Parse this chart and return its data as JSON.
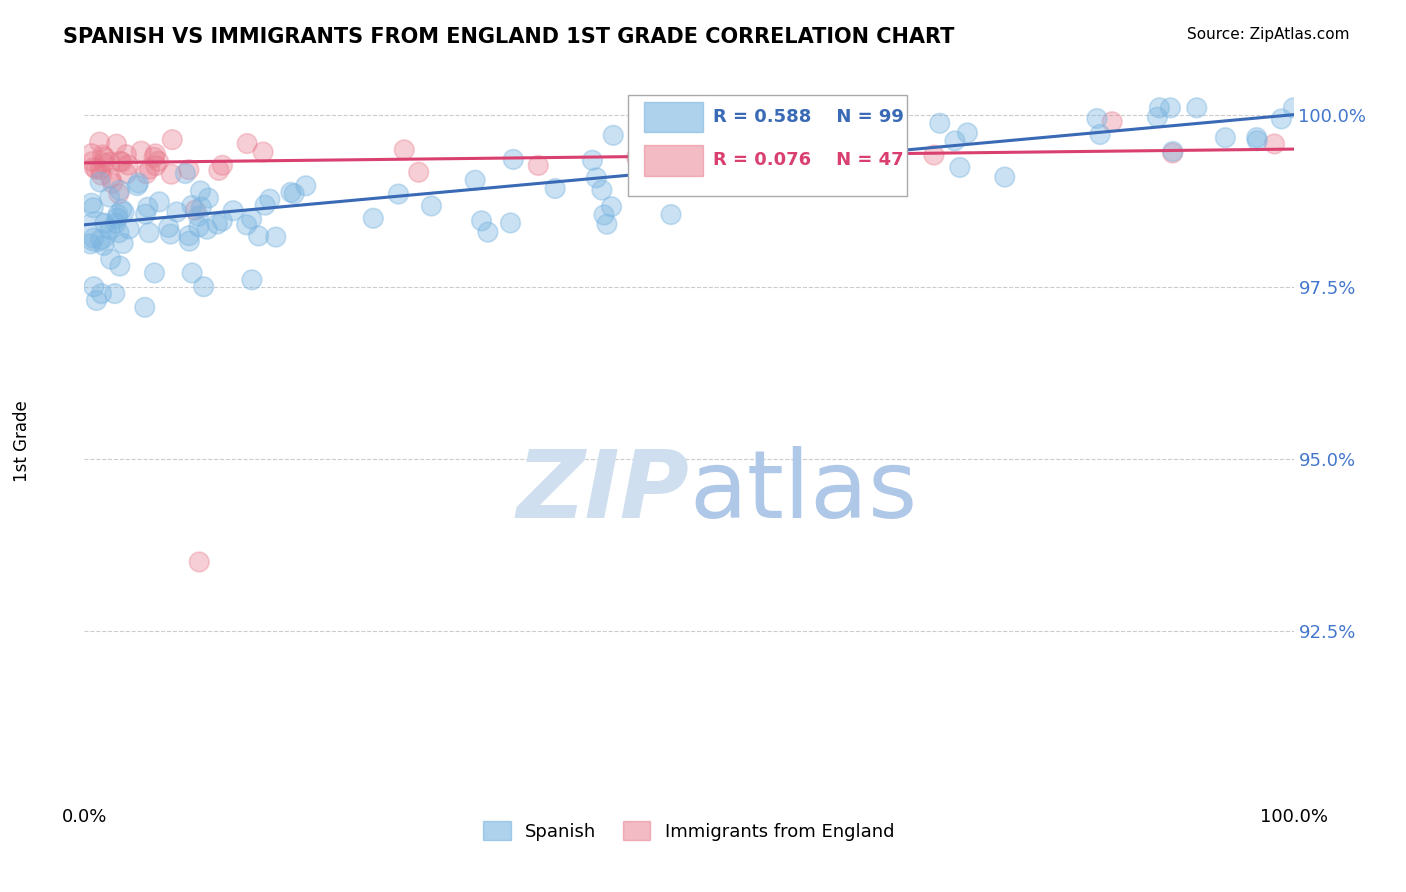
{
  "title": "SPANISH VS IMMIGRANTS FROM ENGLAND 1ST GRADE CORRELATION CHART",
  "source_text": "Source: ZipAtlas.com",
  "ylabel": "1st Grade",
  "xlim": [
    0.0,
    1.0
  ],
  "ylim": [
    0.9,
    1.005
  ],
  "yticks": [
    0.925,
    0.95,
    0.975,
    1.0
  ],
  "ytick_labels": [
    "92.5%",
    "95.0%",
    "97.5%",
    "100.0%"
  ],
  "blue_R": 0.588,
  "blue_N": 99,
  "pink_R": 0.076,
  "pink_N": 47,
  "blue_color": "#7ab4e0",
  "pink_color": "#e8788a",
  "line_blue": "#3a6ab5",
  "line_pink": "#d94070",
  "watermark_color": "#d0dff0",
  "legend_label_blue": "Spanish",
  "legend_label_pink": "Immigrants from England",
  "background_color": "#ffffff",
  "grid_color": "#cccccc",
  "blue_line_start_y": 0.984,
  "blue_line_end_y": 1.0,
  "pink_line_start_y": 0.993,
  "pink_line_end_y": 0.995
}
